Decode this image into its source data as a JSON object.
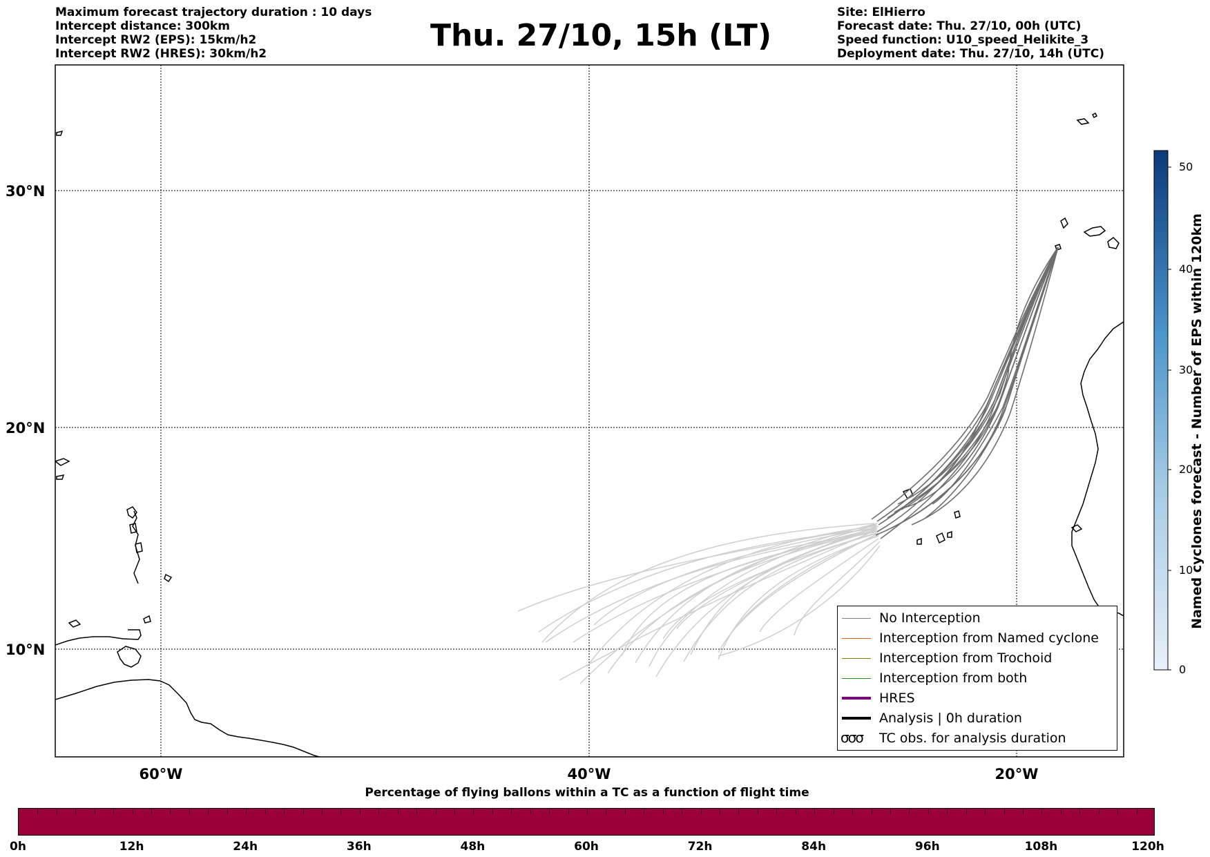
{
  "header_left": [
    "Maximum forecast trajectory duration : 10 days",
    "Intercept distance: 300km",
    "Intercept RW2 (EPS):  15km/h2",
    "Intercept RW2 (HRES): 30km/h2"
  ],
  "title": "Thu. 27/10, 15h (LT)",
  "header_right": [
    "Site: ElHierro",
    "Forecast date: Thu. 27/10, 00h (UTC)",
    "Speed function: U10_speed_Helikite_3",
    "Deployment date: Thu. 27/10, 14h (UTC)"
  ],
  "map": {
    "lat_labels": [
      "30°N",
      "20°N",
      "10°N"
    ],
    "lon_labels": [
      "60°W",
      "40°W",
      "20°W"
    ],
    "colors": {
      "trajectory_dark": "#6e6e6e",
      "trajectory_light": "#cfcfcf",
      "coast": "#000000"
    }
  },
  "legend": {
    "items": [
      {
        "label": "No Interception",
        "color": "#808080",
        "width": 1.5
      },
      {
        "label": "Interception from Named cyclone",
        "color": "#e0531d",
        "width": 1.5
      },
      {
        "label": "Interception from Trochoid",
        "color": "#808000",
        "width": 1.5
      },
      {
        "label": "Interception from both",
        "color": "#228b22",
        "width": 1.5
      },
      {
        "label": "HRES",
        "color": "#800080",
        "width": 4
      },
      {
        "label": "Analysis | 0h duration",
        "color": "#000000",
        "width": 4
      }
    ],
    "tc_symbol": "σσσ",
    "tc_label": "TC obs. for analysis duration"
  },
  "colorbar": {
    "label": "Named cyclones forecast - Number of EPS within 120km",
    "ticks": [
      "0",
      "10",
      "20",
      "30",
      "40",
      "50"
    ],
    "colors": {
      "low": "#e6eef8",
      "high": "#0b3b7a"
    }
  },
  "bottom": {
    "title": "Percentage of flying ballons within a TC as a function of flight time",
    "bar_color": "#9b0039",
    "tick_labels": [
      "0h",
      "12h",
      "24h",
      "36h",
      "48h",
      "60h",
      "72h",
      "84h",
      "96h",
      "108h",
      "120h"
    ]
  }
}
